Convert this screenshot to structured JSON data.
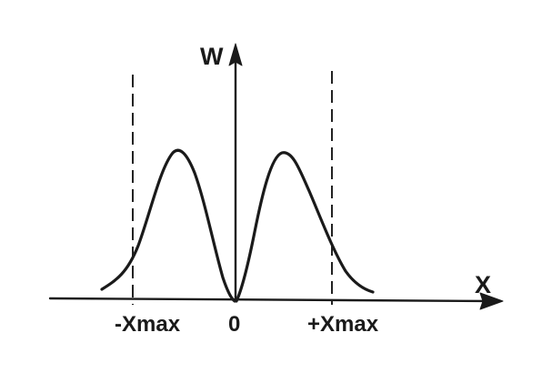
{
  "axes": {
    "y_label": "W",
    "x_label": "X"
  },
  "ticks": {
    "neg_xmax": "-Xmax",
    "zero": "0",
    "pos_xmax": "+Xmax"
  },
  "colors": {
    "ink": "#1a1a1a",
    "background": "#ffffff"
  }
}
